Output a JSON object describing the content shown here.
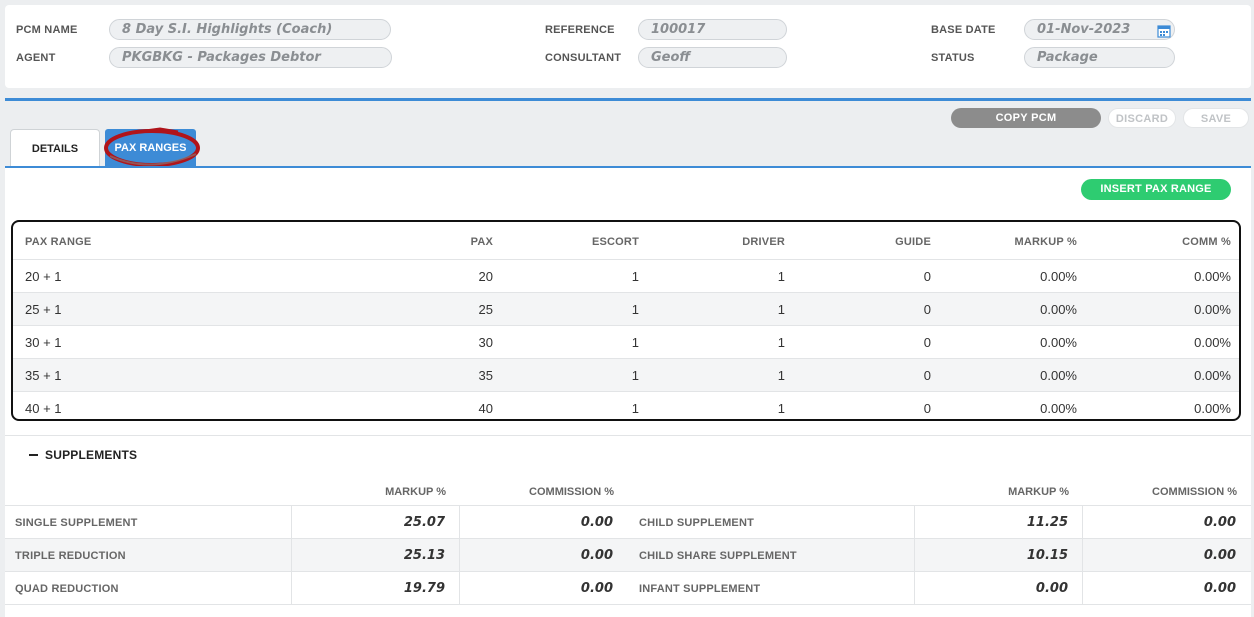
{
  "header": {
    "pcm_name_label": "PCM NAME",
    "pcm_name_value": "8 Day S.I. Highlights (Coach)",
    "agent_label": "AGENT",
    "agent_value": "PKGBKG - Packages Debtor",
    "reference_label": "REFERENCE",
    "reference_value": "100017",
    "consultant_label": "CONSULTANT",
    "consultant_value": "Geoff",
    "base_date_label": "BASE DATE",
    "base_date_value": "01-Nov-2023",
    "status_label": "STATUS",
    "status_value": "Package",
    "calendar_icon": "calendar-icon"
  },
  "actions": {
    "copy_label": "COPY PCM",
    "discard_label": "DISCARD",
    "save_label": "SAVE"
  },
  "tabs": [
    {
      "label": "DETAILS",
      "active": false
    },
    {
      "label": "PAX RANGES",
      "active": true
    }
  ],
  "insert_label": "INSERT PAX RANGE",
  "pax_table": {
    "columns": [
      "PAX RANGE",
      "PAX",
      "ESCORT",
      "DRIVER",
      "GUIDE",
      "MARKUP %",
      "COMM %"
    ],
    "rows": [
      [
        "20 + 1",
        "20",
        "1",
        "1",
        "0",
        "0.00%",
        "0.00%"
      ],
      [
        "25 + 1",
        "25",
        "1",
        "1",
        "0",
        "0.00%",
        "0.00%"
      ],
      [
        "30 + 1",
        "30",
        "1",
        "1",
        "0",
        "0.00%",
        "0.00%"
      ],
      [
        "35 + 1",
        "35",
        "1",
        "1",
        "0",
        "0.00%",
        "0.00%"
      ],
      [
        "40 + 1",
        "40",
        "1",
        "1",
        "0",
        "0.00%",
        "0.00%"
      ]
    ]
  },
  "supplements": {
    "title": "SUPPLEMENTS",
    "collapse_icon": "minus-icon",
    "markup_header": "MARKUP %",
    "commission_header": "COMMISSION %",
    "left": [
      {
        "label": "SINGLE SUPPLEMENT",
        "markup": "25.07",
        "commission": "0.00"
      },
      {
        "label": "TRIPLE REDUCTION",
        "markup": "25.13",
        "commission": "0.00"
      },
      {
        "label": "QUAD REDUCTION",
        "markup": "19.79",
        "commission": "0.00"
      }
    ],
    "right": [
      {
        "label": "CHILD SUPPLEMENT",
        "markup": "11.25",
        "commission": "0.00"
      },
      {
        "label": "CHILD SHARE SUPPLEMENT",
        "markup": "10.15",
        "commission": "0.00"
      },
      {
        "label": "INFANT SUPPLEMENT",
        "markup": "0.00",
        "commission": "0.00"
      }
    ]
  },
  "colors": {
    "accent_blue": "#3d8bd6",
    "insert_green": "#2ecc71",
    "copy_gray": "#8c8c8c",
    "annotation_red": "#b0141a"
  }
}
